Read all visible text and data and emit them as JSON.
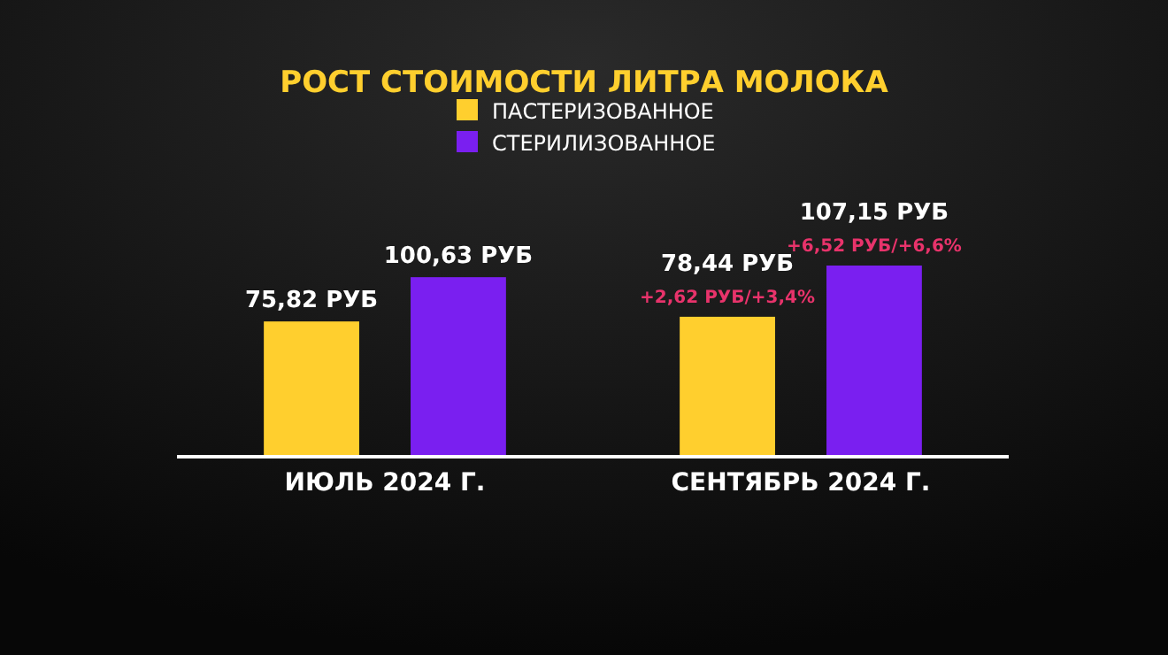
{
  "chart_data": {
    "type": "bar",
    "title": "РОСТ СТОИМОСТИ ЛИТРА МОЛОКА",
    "categories": [
      "ИЮЛЬ 2024 Г.",
      "СЕНТЯБРЬ 2024 Г."
    ],
    "series": [
      {
        "name": "ПАСТЕРИЗОВАННОЕ",
        "color": "#ffcf2e",
        "values": [
          75.82,
          78.44
        ],
        "value_labels": [
          "75,82 РУБ",
          "78,44 РУБ"
        ]
      },
      {
        "name": "СТЕРИЛИЗОВАННОЕ",
        "color": "#7a1ff0",
        "values": [
          100.63,
          107.15
        ],
        "value_labels": [
          "100,63 РУБ",
          "107,15 РУБ"
        ]
      }
    ],
    "annotations": [
      "+2,62 РУБ/+3,4%",
      "+6,52 РУБ/+6,6%"
    ],
    "legend": "top"
  }
}
